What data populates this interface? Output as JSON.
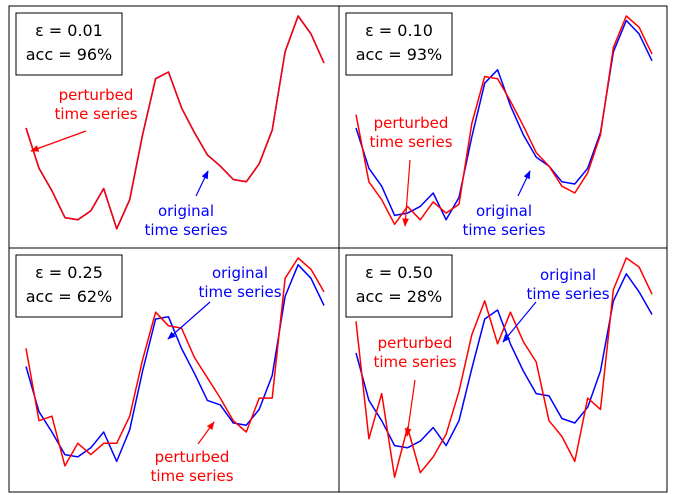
{
  "chart_data": [
    {
      "type": "line",
      "panel": "top-left",
      "box_lines": [
        "ε = 0.01",
        "acc = 96%"
      ],
      "series": [
        {
          "color": "#0000ff",
          "values": [
            0.5,
            0.32,
            0.22,
            0.1,
            0.09,
            0.13,
            0.23,
            0.05,
            0.18,
            0.47,
            0.72,
            0.75,
            0.59,
            0.48,
            0.38,
            0.33,
            0.27,
            0.26,
            0.34,
            0.49,
            0.84,
            1.0,
            0.92,
            0.79
          ]
        },
        {
          "color": "#ff0000",
          "values": [
            0.5,
            0.32,
            0.22,
            0.1,
            0.09,
            0.13,
            0.23,
            0.05,
            0.18,
            0.47,
            0.72,
            0.75,
            0.59,
            0.48,
            0.38,
            0.33,
            0.27,
            0.26,
            0.34,
            0.49,
            0.84,
            1.0,
            0.92,
            0.79
          ]
        }
      ],
      "annotations": [
        {
          "lines": [
            "perturbed",
            "time series"
          ],
          "color": "#ff0000"
        },
        {
          "lines": [
            "original",
            "time series"
          ],
          "color": "#0000ff"
        }
      ]
    },
    {
      "type": "line",
      "panel": "top-right",
      "box_lines": [
        "ε = 0.10",
        "acc = 93%"
      ],
      "series": [
        {
          "color": "#0000ff",
          "values": [
            0.5,
            0.32,
            0.24,
            0.11,
            0.12,
            0.15,
            0.21,
            0.09,
            0.19,
            0.46,
            0.7,
            0.76,
            0.6,
            0.47,
            0.37,
            0.33,
            0.26,
            0.25,
            0.32,
            0.48,
            0.84,
            0.98,
            0.92,
            0.8
          ]
        },
        {
          "color": "#ff0000",
          "values": [
            0.56,
            0.26,
            0.18,
            0.07,
            0.15,
            0.09,
            0.17,
            0.12,
            0.16,
            0.52,
            0.73,
            0.72,
            0.62,
            0.51,
            0.39,
            0.33,
            0.24,
            0.21,
            0.3,
            0.47,
            0.86,
            1.0,
            0.95,
            0.83
          ]
        }
      ],
      "annotations": [
        {
          "lines": [
            "perturbed",
            "time series"
          ],
          "color": "#ff0000"
        },
        {
          "lines": [
            "original",
            "time series"
          ],
          "color": "#0000ff"
        }
      ]
    },
    {
      "type": "line",
      "panel": "bottom-left",
      "box_lines": [
        "ε = 0.25",
        "acc = 62%"
      ],
      "series": [
        {
          "color": "#0000ff",
          "values": [
            0.52,
            0.32,
            0.23,
            0.13,
            0.12,
            0.16,
            0.23,
            0.1,
            0.24,
            0.5,
            0.73,
            0.74,
            0.6,
            0.49,
            0.37,
            0.35,
            0.27,
            0.26,
            0.33,
            0.48,
            0.83,
            0.97,
            0.91,
            0.79
          ]
        },
        {
          "color": "#ff0000",
          "values": [
            0.6,
            0.28,
            0.3,
            0.08,
            0.18,
            0.13,
            0.18,
            0.18,
            0.3,
            0.55,
            0.76,
            0.7,
            0.69,
            0.56,
            0.47,
            0.38,
            0.28,
            0.23,
            0.38,
            0.38,
            0.91,
            1.0,
            0.95,
            0.85
          ]
        }
      ],
      "annotations": [
        {
          "lines": [
            "original",
            "time series"
          ],
          "color": "#0000ff"
        },
        {
          "lines": [
            "perturbed",
            "time series"
          ],
          "color": "#ff0000"
        }
      ]
    },
    {
      "type": "line",
      "panel": "bottom-right",
      "box_lines": [
        "ε = 0.50",
        "acc = 28%"
      ],
      "series": [
        {
          "color": "#0000ff",
          "values": [
            0.58,
            0.37,
            0.28,
            0.17,
            0.16,
            0.19,
            0.25,
            0.17,
            0.28,
            0.51,
            0.73,
            0.77,
            0.62,
            0.5,
            0.4,
            0.39,
            0.29,
            0.27,
            0.34,
            0.5,
            0.81,
            0.93,
            0.85,
            0.75
          ]
        },
        {
          "color": "#ff0000",
          "values": [
            0.72,
            0.2,
            0.4,
            0.03,
            0.25,
            0.05,
            0.12,
            0.22,
            0.41,
            0.66,
            0.81,
            0.62,
            0.76,
            0.63,
            0.54,
            0.28,
            0.21,
            0.1,
            0.38,
            0.33,
            0.86,
            1.0,
            0.96,
            0.84
          ]
        }
      ],
      "annotations": [
        {
          "lines": [
            "perturbed",
            "time series"
          ],
          "color": "#ff0000"
        },
        {
          "lines": [
            "original",
            "time series"
          ],
          "color": "#0000ff"
        }
      ]
    }
  ]
}
